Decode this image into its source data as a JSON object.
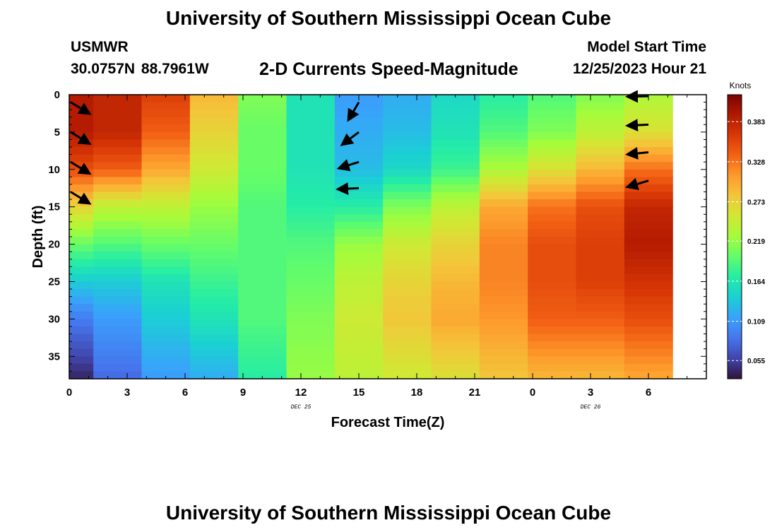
{
  "header": {
    "title": "University of Southern Mississippi Ocean Cube",
    "station": "USMWR",
    "coordinates": "30.0757N  88.7961W",
    "subtitle": "2-D Currents Speed-Magnitude",
    "start_label": "Model Start Time",
    "start_value": "12/25/2023 Hour 21"
  },
  "footer": {
    "title": "University of Southern Mississippi Ocean Cube"
  },
  "chart_data": {
    "type": "heatmap",
    "title": "2-D Currents Speed-Magnitude",
    "xlabel": "Forecast Time(Z)",
    "ylabel": "Depth (ft)",
    "x_ticks": [
      "0",
      "3",
      "6",
      "9",
      "12",
      "15",
      "18",
      "21",
      "0",
      "3",
      "6"
    ],
    "date_labels": [
      {
        "text": "DEC 25",
        "at_tick": 4
      },
      {
        "text": "DEC 26",
        "at_tick": 9
      }
    ],
    "y_ticks": [
      0,
      5,
      10,
      15,
      20,
      25,
      30,
      35
    ],
    "ylim": [
      0,
      38
    ],
    "xlim_hours": [
      0,
      33
    ],
    "time_step_hours": 2.5,
    "depth_knots": [
      0,
      5,
      10,
      15,
      20,
      25,
      30,
      38
    ],
    "speed_by_time": [
      [
        0.39,
        0.39,
        0.35,
        0.27,
        0.2,
        0.14,
        0.09,
        0.04
      ],
      [
        0.38,
        0.38,
        0.34,
        0.24,
        0.19,
        0.14,
        0.11,
        0.08
      ],
      [
        0.36,
        0.34,
        0.3,
        0.24,
        0.2,
        0.16,
        0.14,
        0.11
      ],
      [
        0.29,
        0.27,
        0.25,
        0.22,
        0.2,
        0.18,
        0.16,
        0.12
      ],
      [
        0.21,
        0.2,
        0.2,
        0.19,
        0.19,
        0.19,
        0.19,
        0.17
      ],
      [
        0.16,
        0.16,
        0.16,
        0.17,
        0.19,
        0.2,
        0.21,
        0.22
      ],
      [
        0.11,
        0.12,
        0.13,
        0.17,
        0.22,
        0.24,
        0.25,
        0.24
      ],
      [
        0.12,
        0.13,
        0.15,
        0.21,
        0.25,
        0.27,
        0.28,
        0.25
      ],
      [
        0.15,
        0.16,
        0.18,
        0.24,
        0.27,
        0.29,
        0.3,
        0.26
      ],
      [
        0.17,
        0.19,
        0.23,
        0.3,
        0.32,
        0.32,
        0.31,
        0.28
      ],
      [
        0.19,
        0.21,
        0.26,
        0.33,
        0.35,
        0.35,
        0.34,
        0.29
      ],
      [
        0.21,
        0.24,
        0.29,
        0.35,
        0.36,
        0.36,
        0.34,
        0.29
      ],
      [
        0.23,
        0.26,
        0.33,
        0.38,
        0.39,
        0.37,
        0.35,
        0.3
      ]
    ],
    "vectors": [
      {
        "time_index": 0,
        "depth": 1,
        "dx": 0.9,
        "dy": 0.55
      },
      {
        "time_index": 0,
        "depth": 5,
        "dx": 0.9,
        "dy": 0.55
      },
      {
        "time_index": 0,
        "depth": 9,
        "dx": 0.9,
        "dy": 0.55
      },
      {
        "time_index": 0,
        "depth": 13,
        "dx": 0.9,
        "dy": 0.55
      },
      {
        "time_index": 6,
        "depth": 1,
        "dx": -0.5,
        "dy": 0.85
      },
      {
        "time_index": 6,
        "depth": 5,
        "dx": -0.8,
        "dy": 0.6
      },
      {
        "time_index": 6,
        "depth": 9,
        "dx": -0.95,
        "dy": 0.3
      },
      {
        "time_index": 6,
        "depth": 12.5,
        "dx": -1,
        "dy": 0.05
      },
      {
        "time_index": 12,
        "depth": 0.2,
        "dx": -1,
        "dy": 0.02
      },
      {
        "time_index": 12,
        "depth": 4,
        "dx": -1,
        "dy": 0.05
      },
      {
        "time_index": 12,
        "depth": 7.7,
        "dx": -1,
        "dy": 0.1
      },
      {
        "time_index": 12,
        "depth": 11.5,
        "dx": -1,
        "dy": 0.3
      }
    ],
    "colorbar": {
      "label": "Knots",
      "min": 0.03,
      "max": 0.42,
      "ticks": [
        "0.055",
        "0.109",
        "0.164",
        "0.219",
        "0.273",
        "0.328",
        "0.383"
      ],
      "colors": [
        "#30123b",
        "#4145ab",
        "#4675ed",
        "#39a2fc",
        "#1bcfd4",
        "#24eca6",
        "#61fc6c",
        "#a4fc3b",
        "#d1e834",
        "#f3c63a",
        "#fe9b2d",
        "#f36315",
        "#d93806",
        "#b11901",
        "#7a0402"
      ]
    }
  }
}
